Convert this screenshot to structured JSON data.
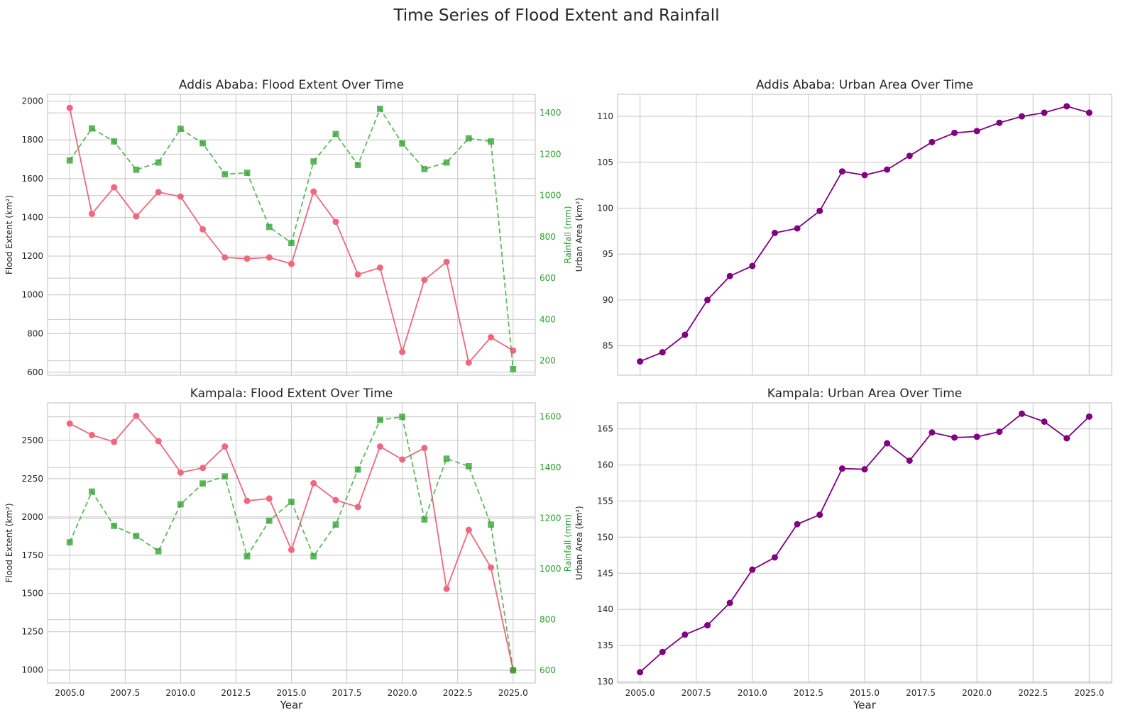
{
  "figure": {
    "title": "Time Series of Flood Extent and Rainfall"
  },
  "colors": {
    "flood": "#f0677f",
    "rainfall": "#2ca02c",
    "urban": "#800080",
    "grid": "#cccccc",
    "axes_edge": "#cccccc",
    "text": "#262626"
  },
  "chart_data": [
    {
      "id": "addis-flood",
      "type": "line",
      "title": "Addis Ababa: Flood Extent Over Time",
      "xlabel": "",
      "ylabel": "Flood Extent (km²)",
      "y2label": "Rainfall (mm)",
      "x": [
        2005,
        2006,
        2007,
        2008,
        2009,
        2010,
        2011,
        2012,
        2013,
        2014,
        2015,
        2016,
        2017,
        2018,
        2019,
        2020,
        2021,
        2022,
        2023,
        2024,
        2025
      ],
      "xlim": [
        2004,
        2026
      ],
      "xticks": [
        2005.0,
        2007.5,
        2010.0,
        2012.5,
        2015.0,
        2017.5,
        2020.0,
        2022.5,
        2025.0
      ],
      "xtick_labels_visible": false,
      "ylim": [
        585,
        2035
      ],
      "yticks": [
        600,
        800,
        1000,
        1200,
        1400,
        1600,
        1800,
        2000
      ],
      "y2lim": [
        130,
        1490
      ],
      "y2ticks": [
        200,
        400,
        600,
        800,
        1000,
        1200,
        1400
      ],
      "grid": true,
      "series": [
        {
          "axis": "left",
          "marker": "circle",
          "style": "solid",
          "values": [
            1965,
            1418,
            1555,
            1405,
            1530,
            1507,
            1338,
            1193,
            1187,
            1193,
            1160,
            1533,
            1377,
            1105,
            1140,
            705,
            1077,
            1170,
            650,
            781,
            712
          ]
        },
        {
          "axis": "right",
          "marker": "square",
          "style": "dashed",
          "values": [
            1170,
            1325,
            1262,
            1125,
            1160,
            1323,
            1253,
            1103,
            1110,
            848,
            770,
            1165,
            1298,
            1148,
            1420,
            1252,
            1128,
            1160,
            1277,
            1262,
            160
          ]
        }
      ]
    },
    {
      "id": "addis-urban",
      "type": "line",
      "title": "Addis Ababa: Urban Area Over Time",
      "xlabel": "",
      "ylabel": "Urban Area (km²)",
      "x": [
        2005,
        2006,
        2007,
        2008,
        2009,
        2010,
        2011,
        2012,
        2013,
        2014,
        2015,
        2016,
        2017,
        2018,
        2019,
        2020,
        2021,
        2022,
        2023,
        2024,
        2025
      ],
      "xlim": [
        2004,
        2026
      ],
      "xticks": [
        2005.0,
        2007.5,
        2010.0,
        2012.5,
        2015.0,
        2017.5,
        2020.0,
        2022.5,
        2025.0
      ],
      "xtick_labels_visible": false,
      "ylim": [
        81.8,
        112.4
      ],
      "yticks": [
        85,
        90,
        95,
        100,
        105,
        110
      ],
      "grid": true,
      "series": [
        {
          "axis": "left",
          "marker": "circle",
          "style": "solid",
          "values": [
            83.3,
            84.3,
            86.2,
            90.0,
            92.6,
            93.7,
            97.3,
            97.8,
            99.7,
            104.0,
            103.6,
            104.2,
            105.7,
            107.2,
            108.2,
            108.4,
            109.3,
            110.0,
            110.4,
            111.1,
            110.4
          ]
        }
      ]
    },
    {
      "id": "kampala-flood",
      "type": "line",
      "title": "Kampala: Flood Extent Over Time",
      "xlabel": "Year",
      "ylabel": "Flood Extent (km²)",
      "y2label": "Rainfall (mm)",
      "x": [
        2005,
        2006,
        2007,
        2008,
        2009,
        2010,
        2011,
        2012,
        2013,
        2014,
        2015,
        2016,
        2017,
        2018,
        2019,
        2020,
        2021,
        2022,
        2023,
        2024,
        2025
      ],
      "xlim": [
        2004,
        2026
      ],
      "xticks": [
        2005.0,
        2007.5,
        2010.0,
        2012.5,
        2015.0,
        2017.5,
        2020.0,
        2022.5,
        2025.0
      ],
      "xtick_labels_visible": true,
      "ylim": [
        915,
        2745
      ],
      "yticks": [
        1000,
        1250,
        1500,
        1750,
        2000,
        2250,
        2500
      ],
      "y2lim": [
        550,
        1655
      ],
      "y2ticks": [
        600,
        800,
        1000,
        1200,
        1400,
        1600
      ],
      "grid": true,
      "series": [
        {
          "axis": "left",
          "marker": "circle",
          "style": "solid",
          "values": [
            2610,
            2535,
            2490,
            2660,
            2495,
            2290,
            2320,
            2460,
            2105,
            2120,
            1785,
            2220,
            2110,
            2065,
            2460,
            2375,
            2450,
            1530,
            1915,
            1670,
            1000
          ]
        },
        {
          "axis": "right",
          "marker": "square",
          "style": "dashed",
          "values": [
            1105,
            1305,
            1170,
            1130,
            1070,
            1255,
            1337,
            1365,
            1050,
            1190,
            1265,
            1050,
            1175,
            1392,
            1588,
            1600,
            1195,
            1435,
            1405,
            1175,
            600
          ]
        }
      ]
    },
    {
      "id": "kampala-urban",
      "type": "line",
      "title": "Kampala: Urban Area Over Time",
      "xlabel": "Year",
      "ylabel": "Urban Area (km²)",
      "x": [
        2005,
        2006,
        2007,
        2008,
        2009,
        2010,
        2011,
        2012,
        2013,
        2014,
        2015,
        2016,
        2017,
        2018,
        2019,
        2020,
        2021,
        2022,
        2023,
        2024,
        2025
      ],
      "xlim": [
        2004,
        2026
      ],
      "xticks": [
        2005.0,
        2007.5,
        2010.0,
        2012.5,
        2015.0,
        2017.5,
        2020.0,
        2022.5,
        2025.0
      ],
      "xtick_labels_visible": true,
      "ylim": [
        129.8,
        168.6
      ],
      "yticks": [
        130,
        135,
        140,
        145,
        150,
        155,
        160,
        165
      ],
      "grid": true,
      "series": [
        {
          "axis": "left",
          "marker": "circle",
          "style": "solid",
          "values": [
            131.3,
            134.1,
            136.5,
            137.8,
            140.9,
            145.5,
            147.2,
            151.8,
            153.1,
            159.5,
            159.4,
            163.0,
            160.6,
            164.5,
            163.8,
            163.9,
            164.6,
            167.1,
            166.0,
            163.7,
            166.7
          ]
        }
      ]
    }
  ]
}
